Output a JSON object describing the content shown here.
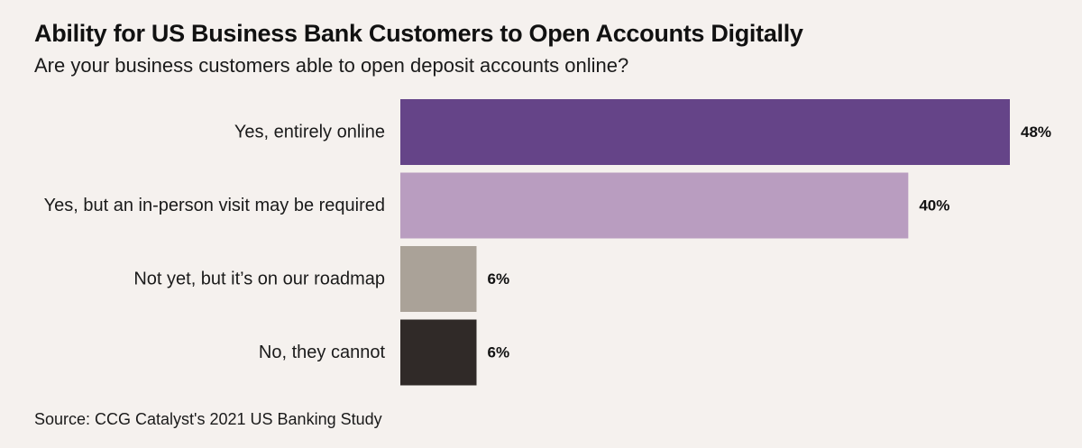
{
  "chart_data": {
    "type": "bar",
    "orientation": "horizontal",
    "title": "Ability for US Business Bank Customers to Open Accounts Digitally",
    "subtitle": "Are your business customers able to open deposit accounts online?",
    "categories": [
      "Yes, entirely online",
      "Yes, but an in-person visit may be required",
      "Not yet, but it’s on our roadmap",
      "No, they cannot"
    ],
    "values": [
      48,
      40,
      6,
      6
    ],
    "value_labels": [
      "48%",
      "40%",
      "6%",
      "6%"
    ],
    "colors": [
      "#654488",
      "#b99dc0",
      "#aaa298",
      "#302a28"
    ],
    "xlim": [
      0,
      48
    ],
    "grid": false,
    "legend": "none",
    "source": "Source: CCG Catalyst's 2021 US Banking Study"
  }
}
